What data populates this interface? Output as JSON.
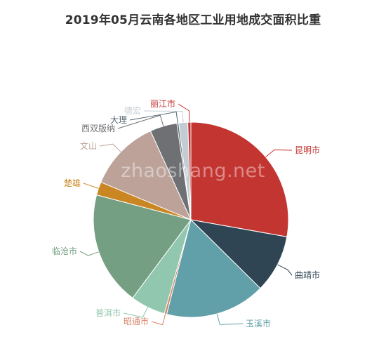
{
  "watermark": "zhaoshang.net",
  "chart_data": {
    "type": "pie",
    "title": "2019年05月云南各地区工业用地成交面积比重",
    "slices": [
      {
        "label": "昆明市",
        "value": 27.8,
        "color": "#c23531"
      },
      {
        "label": "曲靖市",
        "value": 9.6,
        "color": "#2f4554"
      },
      {
        "label": "玉溪市",
        "value": 16.6,
        "color": "#61a0a8"
      },
      {
        "label": "昭通市",
        "value": 0.4,
        "color": "#d48265"
      },
      {
        "label": "普洱市",
        "value": 5.8,
        "color": "#91c7ae"
      },
      {
        "label": "临沧市",
        "value": 18.9,
        "color": "#749f83"
      },
      {
        "label": "楚雄",
        "value": 2.2,
        "color": "#ca8622"
      },
      {
        "label": "文山",
        "value": 11.9,
        "color": "#bda29a"
      },
      {
        "label": "西双版纳",
        "value": 4.5,
        "color": "#6e7074"
      },
      {
        "label": "大理",
        "value": 0.3,
        "color": "#546570"
      },
      {
        "label": "德宏",
        "value": 1.5,
        "color": "#c4ccd3"
      },
      {
        "label": "丽江市",
        "value": 0.5,
        "color": "#c23531"
      }
    ]
  }
}
